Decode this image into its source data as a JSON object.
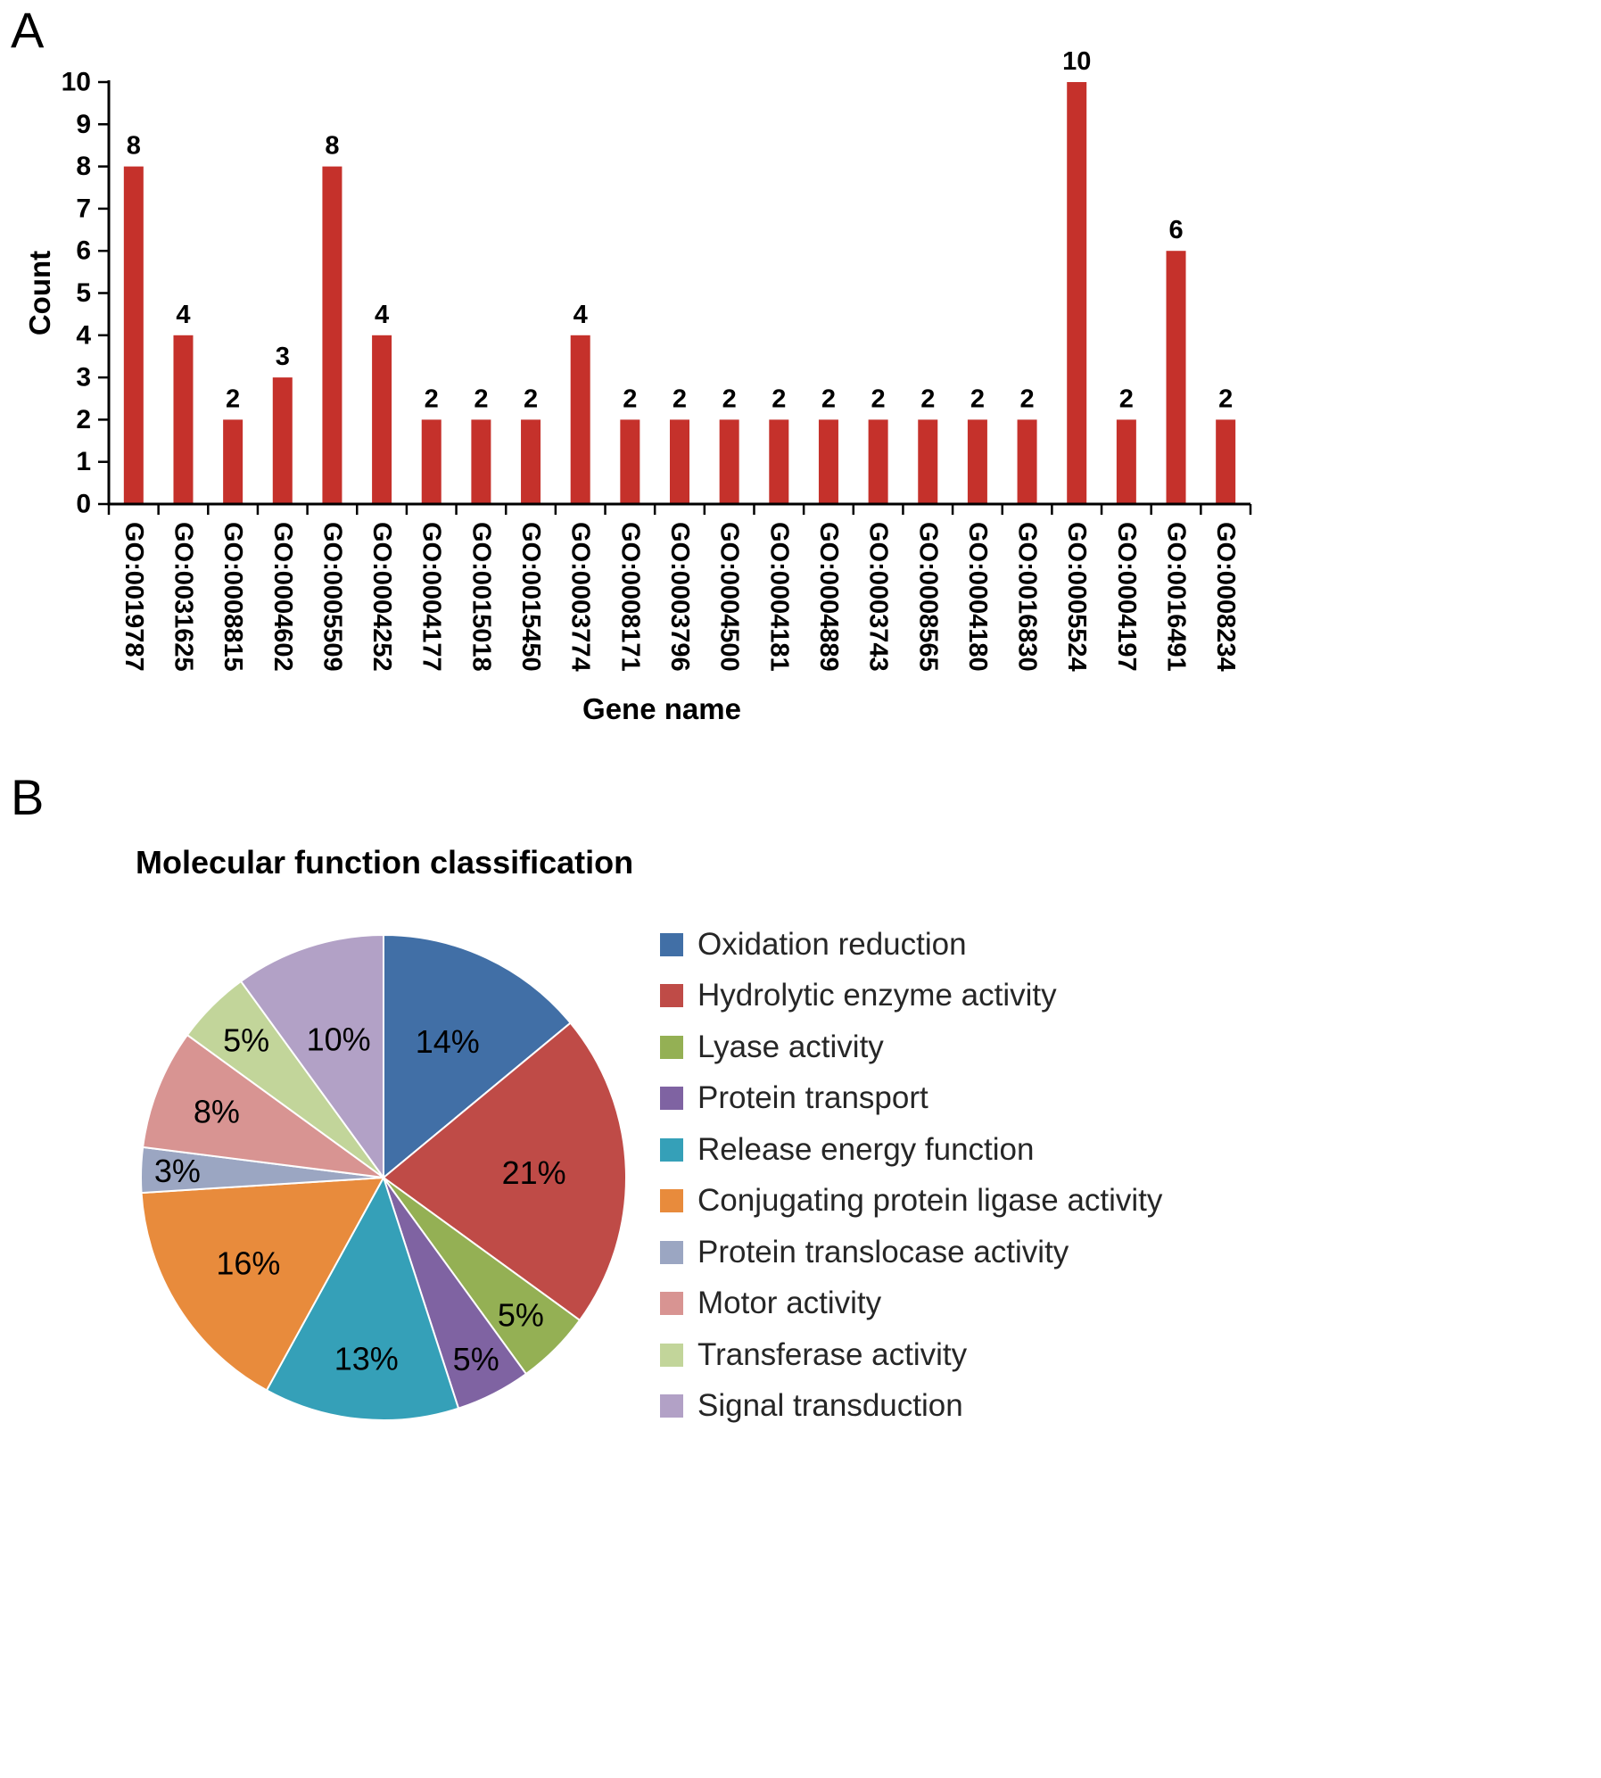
{
  "panels": {
    "a": "A",
    "b": "B"
  },
  "chart_data": [
    {
      "type": "bar",
      "panel": "A",
      "title": "",
      "xlabel": "Gene name",
      "ylabel": "Count",
      "ylim": [
        0,
        10
      ],
      "yticks": [
        0,
        1,
        2,
        3,
        4,
        5,
        6,
        7,
        8,
        9,
        10
      ],
      "grid": false,
      "bar_color": "#c5312b",
      "axis_color": "#000000",
      "categories": [
        "GO:0019787",
        "GO:0031625",
        "GO:0008815",
        "GO:0004602",
        "GO:0005509",
        "GO:0004252",
        "GO:0004177",
        "GO:0015018",
        "GO:0015450",
        "GO:0003774",
        "GO:0008171",
        "GO:0003796",
        "GO:0004500",
        "GO:0004181",
        "GO:0004889",
        "GO:0003743",
        "GO:0008565",
        "GO:0004180",
        "GO:0016830",
        "GO:0005524",
        "GO:0004197",
        "GO:0016491",
        "GO:0008234"
      ],
      "values": [
        8,
        4,
        2,
        3,
        8,
        4,
        2,
        2,
        2,
        4,
        2,
        2,
        2,
        2,
        2,
        2,
        2,
        2,
        2,
        10,
        2,
        6,
        2
      ],
      "value_labels": [
        "8",
        "4",
        "2",
        "3",
        "8",
        "4",
        "2",
        "2",
        "2",
        "4",
        "2",
        "2",
        "2",
        "2",
        "2",
        "2",
        "2",
        "2",
        "2",
        "10",
        "2",
        "6",
        "2"
      ]
    },
    {
      "type": "pie",
      "panel": "B",
      "title": "Molecular function classification",
      "legend_position": "right",
      "start_angle_deg": 0,
      "direction": "clockwise",
      "slices": [
        {
          "label": "Oxidation reduction",
          "value": 14,
          "pct_label": "14%",
          "color": "#416fa6",
          "label_r": 0.62
        },
        {
          "label": "Hydrolytic enzyme activity",
          "value": 21,
          "pct_label": "21%",
          "color": "#bf4b47",
          "label_r": 0.62
        },
        {
          "label": "Lyase activity",
          "value": 5,
          "pct_label": "5%",
          "color": "#94b054",
          "label_r": 0.8
        },
        {
          "label": "Protein transport",
          "value": 5,
          "pct_label": "5%",
          "color": "#7f63a2",
          "label_r": 0.84
        },
        {
          "label": "Release energy function",
          "value": 13,
          "pct_label": "13%",
          "color": "#35a0b8",
          "label_r": 0.75
        },
        {
          "label": "Conjugating protein ligase activity",
          "value": 16,
          "pct_label": "16%",
          "color": "#e88b3c",
          "label_r": 0.66
        },
        {
          "label": "Protein translocase activity",
          "value": 3,
          "pct_label": "3%",
          "color": "#9ba6c2",
          "label_r": 0.85
        },
        {
          "label": "Motor activity",
          "value": 8,
          "pct_label": "8%",
          "color": "#d89492",
          "label_r": 0.74
        },
        {
          "label": "Transferase activity",
          "value": 5,
          "pct_label": "5%",
          "color": "#c2d59a",
          "label_r": 0.8
        },
        {
          "label": "Signal transduction",
          "value": 10,
          "pct_label": "10%",
          "color": "#b2a1c6",
          "label_r": 0.6
        }
      ]
    }
  ]
}
